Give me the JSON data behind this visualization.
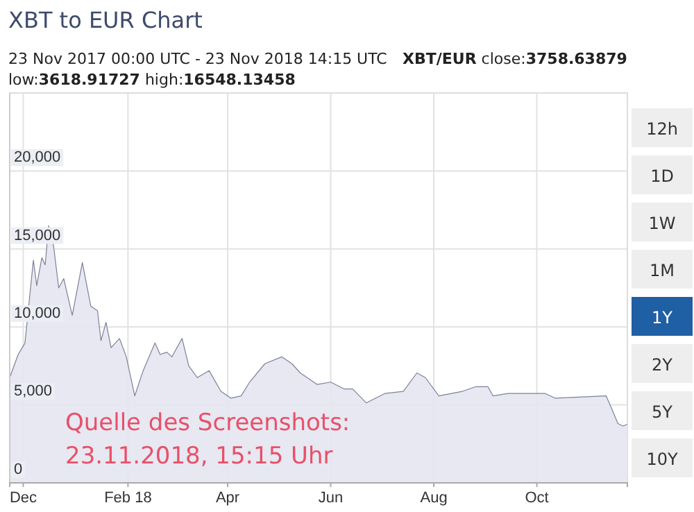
{
  "chart_data": {
    "type": "area",
    "title": "XBT to EUR Chart",
    "subtitle": "23 Nov 2017 00:00 UTC - 23 Nov 2018 14:15 UTC",
    "annotations": [
      "XBT/EUR close:3758.63879",
      "low:3618.91727 high:16548.13458",
      "Quelle des Screenshots:",
      "23.11.2018, 15:15 Uhr",
      "12h",
      "1D",
      "1W",
      "1M",
      "1Y",
      "2Y",
      "5Y",
      "10Y"
    ],
    "x": [
      "2017-11-23",
      "2017-11-28",
      "2017-12-02",
      "2017-12-07",
      "2017-12-09",
      "2017-12-12",
      "2017-12-14",
      "2017-12-16",
      "2017-12-19",
      "2017-12-22",
      "2017-12-25",
      "2017-12-30",
      "2018-01-05",
      "2018-01-10",
      "2018-01-14",
      "2018-01-16",
      "2018-01-19",
      "2018-01-22",
      "2018-01-27",
      "2018-01-31",
      "2018-02-05",
      "2018-02-10",
      "2018-02-17",
      "2018-02-20",
      "2018-02-24",
      "2018-02-27",
      "2018-03-05",
      "2018-03-09",
      "2018-03-14",
      "2018-03-21",
      "2018-03-28",
      "2018-04-03",
      "2018-04-09",
      "2018-04-14",
      "2018-04-23",
      "2018-05-03",
      "2018-05-09",
      "2018-05-14",
      "2018-05-24",
      "2018-06-01",
      "2018-06-09",
      "2018-06-14",
      "2018-06-22",
      "2018-07-03",
      "2018-07-14",
      "2018-07-22",
      "2018-07-27",
      "2018-08-04",
      "2018-08-18",
      "2018-08-26",
      "2018-09-02",
      "2018-09-05",
      "2018-09-14",
      "2018-10-06",
      "2018-10-12",
      "2018-11-11",
      "2018-11-14",
      "2018-11-18",
      "2018-11-21",
      "2018-11-23T14:15"
    ],
    "series": [
      {
        "color": "#7c8199",
        "values": [
          6750,
          8230,
          8960,
          14280,
          12650,
          14430,
          13980,
          16490,
          15160,
          12500,
          13100,
          10740,
          14130,
          11330,
          11030,
          9120,
          10290,
          8670,
          9260,
          8080,
          5580,
          7200,
          8970,
          8230,
          8380,
          8080,
          9260,
          7500,
          6750,
          7200,
          5870,
          5430,
          5580,
          6460,
          7640,
          8080,
          7640,
          7050,
          6310,
          6460,
          6020,
          6020,
          5130,
          5730,
          5870,
          7050,
          6750,
          5580,
          5870,
          6170,
          6170,
          5580,
          5730,
          5730,
          5430,
          5580,
          4840,
          3800,
          3650,
          3759
        ]
      }
    ],
    "xlim": [
      "2017-11-23",
      "2018-11-23T14:15"
    ],
    "xticks": [
      {
        "value": "2017-12-01",
        "label": "Dec"
      },
      {
        "value": "2018-02-01",
        "label": "Feb 18"
      },
      {
        "value": "2018-04-01",
        "label": "Apr"
      },
      {
        "value": "2018-06-01",
        "label": "Jun"
      },
      {
        "value": "2018-08-01",
        "label": "Aug"
      },
      {
        "value": "2018-10-01",
        "label": "Oct"
      }
    ],
    "ylim": [
      0,
      25000
    ],
    "yticks": [
      0,
      {
        "value": 5000,
        "label": "5,000"
      },
      {
        "value": 10000,
        "label": "10,000"
      },
      {
        "value": 15000,
        "label": "15,000"
      },
      {
        "value": 20000,
        "label": "20,000"
      }
    ],
    "grid": true
  }
}
